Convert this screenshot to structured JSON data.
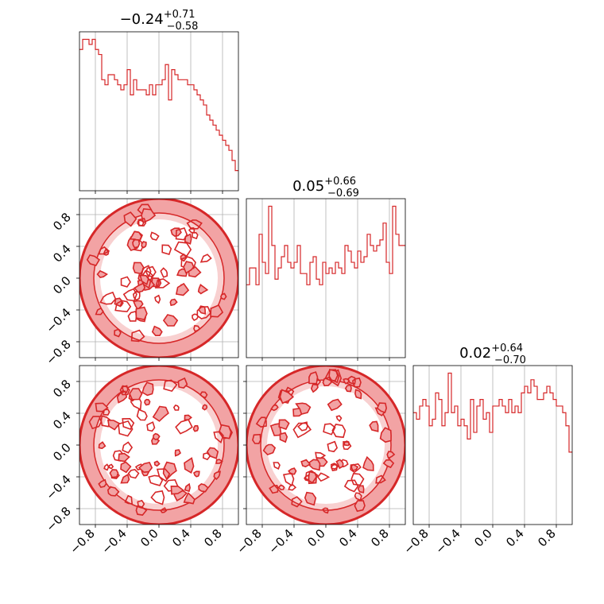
{
  "colors": {
    "line": "#d62728",
    "fill_outer": "#f2a3a4",
    "fill_inner": "#f8d0d0",
    "grid": "#b0b0b0",
    "frame": "#000000"
  },
  "chart_data": {
    "type": "corner",
    "grid": true,
    "parameters": [
      {
        "median": "0.24",
        "median_sign": "−",
        "plus": "+0.71",
        "minus": "−0.58"
      },
      {
        "median": "0.05",
        "median_sign": "",
        "plus": "+0.66",
        "minus": "−0.69"
      },
      {
        "median": "0.02",
        "median_sign": "",
        "plus": "+0.64",
        "minus": "−0.70"
      }
    ],
    "axis_range": [
      -1.0,
      1.0
    ],
    "tick_values": [
      -0.8,
      -0.4,
      0.0,
      0.4,
      0.8
    ],
    "tick_labels": [
      "−0.8",
      "−0.4",
      "0.0",
      "0.4",
      "0.8"
    ],
    "histograms": [
      {
        "bin_edges_range": [
          -1.0,
          1.0
        ],
        "bins": 50,
        "counts": [
          28,
          30,
          30,
          29,
          30,
          28,
          27,
          22,
          21,
          23,
          23,
          22,
          21,
          20,
          21,
          24,
          19,
          22,
          20,
          20,
          20,
          19,
          21,
          19,
          21,
          21,
          22,
          25,
          18,
          24,
          23,
          22,
          22,
          22,
          21,
          21,
          20,
          19,
          18,
          17,
          15,
          14,
          13,
          12,
          11,
          10,
          9,
          8,
          6,
          4
        ]
      },
      {
        "bin_edges_range": [
          -1.0,
          1.0
        ],
        "bins": 50,
        "counts": [
          13,
          16,
          16,
          13,
          22,
          17,
          15,
          27,
          20,
          14,
          16,
          18,
          20,
          17,
          16,
          17,
          20,
          15,
          15,
          13,
          17,
          18,
          14,
          13,
          17,
          15,
          16,
          15,
          17,
          16,
          15,
          20,
          19,
          17,
          16,
          19,
          17,
          18,
          22,
          20,
          19,
          20,
          21,
          24,
          17,
          15,
          27,
          22,
          20,
          20
        ]
      },
      {
        "bin_edges_range": [
          -1.0,
          1.0
        ],
        "bins": 50,
        "counts": [
          17,
          16,
          18,
          19,
          18,
          15,
          16,
          20,
          19,
          15,
          17,
          23,
          17,
          18,
          15,
          16,
          15,
          13,
          19,
          14,
          18,
          19,
          16,
          17,
          14,
          18,
          18,
          19,
          18,
          17,
          19,
          17,
          18,
          17,
          20,
          21,
          20,
          22,
          21,
          19,
          19,
          20,
          21,
          20,
          19,
          18,
          18,
          17,
          15,
          11
        ]
      }
    ],
    "contours_2d": [
      {
        "x_param": 0,
        "y_param": 1,
        "support": "unit disk centred at (0, 0), radius 1.0"
      },
      {
        "x_param": 0,
        "y_param": 2,
        "support": "unit disk centred at (0, 0), radius 1.0"
      },
      {
        "x_param": 1,
        "y_param": 2,
        "support": "unit disk centred at (0, 0), radius 1.0"
      }
    ]
  }
}
